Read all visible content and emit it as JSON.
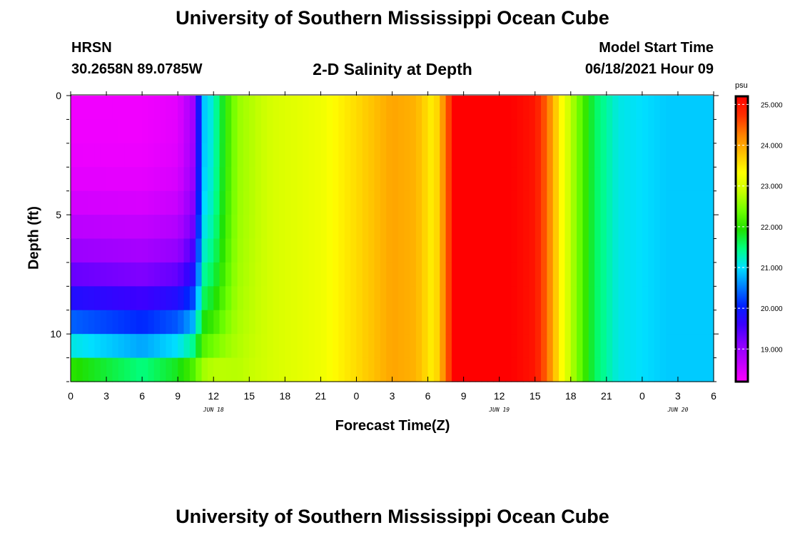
{
  "header": {
    "title_top": "University of Southern Mississippi Ocean Cube",
    "title_bottom": "University of Southern Mississippi Ocean Cube",
    "station": "HRSN",
    "coords": "30.2658N  89.0785W",
    "plot_title": "2-D Salinity at Depth",
    "model_label": "Model Start Time",
    "model_time": "06/18/2021 Hour 09"
  },
  "chart_data": {
    "type": "heatmap",
    "title": "2-D Salinity at Depth",
    "xlabel": "Forecast Time(Z)",
    "ylabel": "Depth (ft)",
    "x_tick_labels": [
      "0",
      "3",
      "6",
      "9",
      "12",
      "15",
      "18",
      "21",
      "0",
      "3",
      "6",
      "9",
      "12",
      "15",
      "18",
      "21",
      "0",
      "3",
      "6"
    ],
    "x_date_labels": [
      {
        "label": "JUN 18",
        "at_hour": 12
      },
      {
        "label": "JUN 19",
        "at_hour": 36
      },
      {
        "label": "JUN 20",
        "at_hour": 51
      }
    ],
    "x_hours_range": [
      0,
      54
    ],
    "y_tick_labels": [
      "0",
      "5",
      "10"
    ],
    "ylim": [
      0,
      12
    ],
    "depth_axis_inverted": true,
    "colorbar": {
      "unit": "psu",
      "min": 18.2,
      "max": 25.2,
      "tick_labels": [
        "25.000",
        "24.000",
        "23.000",
        "22.000",
        "21.000",
        "20.000",
        "19.000"
      ],
      "colors": [
        "#ff00ff",
        "#c000ff",
        "#8800ff",
        "#3a00ff",
        "#0022ff",
        "#0080ff",
        "#00e0ff",
        "#00ff80",
        "#20e000",
        "#70ff00",
        "#c8ff00",
        "#ffff00",
        "#ffc000",
        "#ff8000",
        "#ff3000",
        "#ff0000"
      ]
    },
    "series": [
      {
        "hour": 0,
        "surface": 18.3,
        "bottom": 22.5
      },
      {
        "hour": 3,
        "surface": 18.3,
        "bottom": 22.2
      },
      {
        "hour": 6,
        "surface": 18.3,
        "bottom": 21.9
      },
      {
        "hour": 9,
        "surface": 18.4,
        "bottom": 22.3
      },
      {
        "hour": 10.5,
        "surface": 19.0,
        "bottom": 22.7
      },
      {
        "hour": 11,
        "surface": 20.8,
        "bottom": 22.9
      },
      {
        "hour": 12,
        "surface": 21.2,
        "bottom": 23.0
      },
      {
        "hour": 13,
        "surface": 22.0,
        "bottom": 22.9
      },
      {
        "hour": 14,
        "surface": 22.6,
        "bottom": 22.8
      },
      {
        "hour": 17,
        "surface": 23.0,
        "bottom": 23.0
      },
      {
        "hour": 21,
        "surface": 23.2,
        "bottom": 23.2
      },
      {
        "hour": 24,
        "surface": 23.6,
        "bottom": 23.6
      },
      {
        "hour": 27,
        "surface": 24.0,
        "bottom": 24.0
      },
      {
        "hour": 29,
        "surface": 23.9,
        "bottom": 23.9
      },
      {
        "hour": 30.5,
        "surface": 23.4,
        "bottom": 23.4
      },
      {
        "hour": 31.5,
        "surface": 24.3,
        "bottom": 24.3
      },
      {
        "hour": 32.2,
        "surface": 25.2,
        "bottom": 25.2
      },
      {
        "hour": 37,
        "surface": 25.2,
        "bottom": 25.2
      },
      {
        "hour": 39,
        "surface": 25.0,
        "bottom": 25.0
      },
      {
        "hour": 40,
        "surface": 24.4,
        "bottom": 24.4
      },
      {
        "hour": 41,
        "surface": 23.5,
        "bottom": 23.5
      },
      {
        "hour": 42,
        "surface": 22.8,
        "bottom": 22.8
      },
      {
        "hour": 44,
        "surface": 21.6,
        "bottom": 21.6
      },
      {
        "hour": 46,
        "surface": 21.1,
        "bottom": 21.1
      },
      {
        "hour": 50,
        "surface": 20.9,
        "bottom": 20.9
      },
      {
        "hour": 54,
        "surface": 20.9,
        "bottom": 20.9
      }
    ]
  }
}
